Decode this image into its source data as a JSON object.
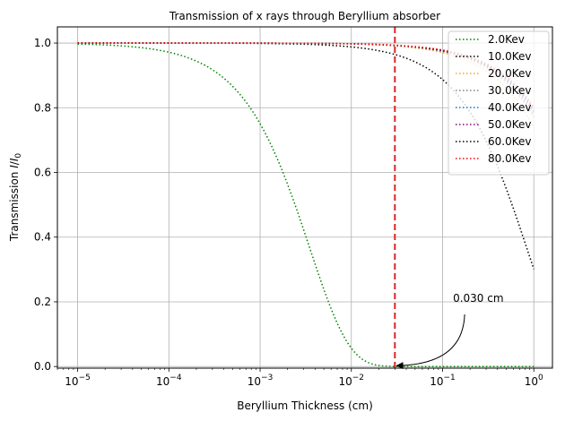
{
  "chart_data": {
    "type": "line",
    "title": "Transmission of x rays through Beryllium absorber",
    "xlabel": "Beryllium Thickness (cm)",
    "ylabel": "Transmission I/I0",
    "xscale": "log",
    "xlim": [
      6e-06,
      1.6
    ],
    "ylim": [
      -0.005,
      1.05
    ],
    "grid": true,
    "legend_position": "top-right",
    "x_tick_labels": [
      {
        "value": 1e-05,
        "base": "10",
        "exp": "−5"
      },
      {
        "value": 0.0001,
        "base": "10",
        "exp": "−4"
      },
      {
        "value": 0.001,
        "base": "10",
        "exp": "−3"
      },
      {
        "value": 0.01,
        "base": "10",
        "exp": "−2"
      },
      {
        "value": 0.1,
        "base": "10",
        "exp": "−1"
      },
      {
        "value": 1,
        "base": "10",
        "exp": "0"
      }
    ],
    "y_ticks": [
      0.0,
      0.2,
      0.4,
      0.6,
      0.8,
      1.0
    ],
    "y_tick_labels": [
      "0.0",
      "0.2",
      "0.4",
      "0.6",
      "0.8",
      "1.0"
    ],
    "x_range": [
      1e-05,
      1.0
    ],
    "series": [
      {
        "name": "2.0Kev",
        "color": "#008000",
        "mu": 287
      },
      {
        "name": "10.0Kev",
        "color": "#000000",
        "mu": 1.2
      },
      {
        "name": "20.0Kev",
        "color": "#ffa500",
        "mu": 0.3
      },
      {
        "name": "30.0Kev",
        "color": "#808080",
        "mu": 0.26
      },
      {
        "name": "40.0Kev",
        "color": "#1f77b4",
        "mu": 0.25
      },
      {
        "name": "50.0Kev",
        "color": "#800080",
        "mu": 0.24
      },
      {
        "name": "60.0Kev",
        "color": "#000000",
        "mu": 0.23
      },
      {
        "name": "80.0Kev",
        "color": "#ff0000",
        "mu": 0.22
      }
    ],
    "vline": {
      "x": 0.03,
      "color": "#d62728",
      "style": "dashed"
    },
    "annotation": {
      "text": "0.030 cm",
      "point": [
        0.03,
        0.0
      ],
      "text_at": [
        0.13,
        0.2
      ]
    }
  }
}
